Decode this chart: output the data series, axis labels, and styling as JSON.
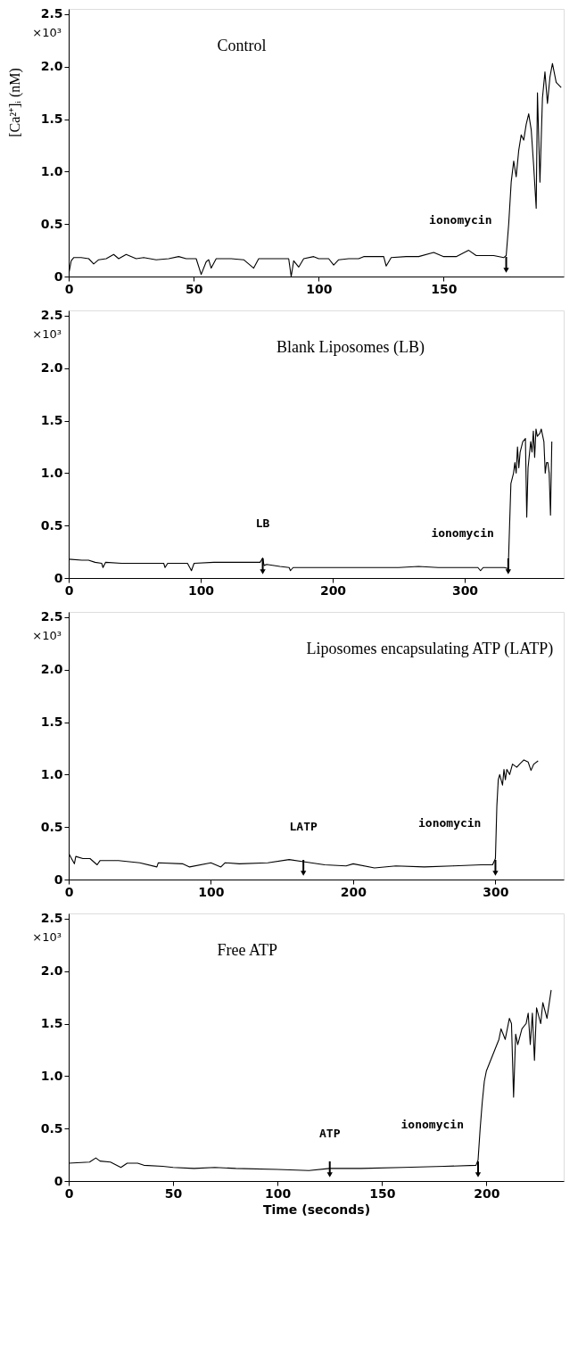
{
  "chart_data": [
    {
      "type": "line",
      "title": "Control",
      "ylabel": "×10³ [Ca²⁺]ᵢ (nM)",
      "annotations": [
        {
          "text": "ionomycin",
          "x": 175,
          "y": 0.2
        }
      ],
      "xlim": [
        0,
        198
      ],
      "xticks": [
        0,
        50,
        100,
        150
      ],
      "ylim": [
        0,
        2.55
      ],
      "yticks": [
        0,
        0.5,
        {
          "value": 1,
          "label": "1.0"
        },
        1.5,
        {
          "value": 2,
          "label": "2.0"
        },
        2.5
      ],
      "grid": false,
      "tick_labels": "xy",
      "series": [
        {
          "color": "#000000",
          "x": [
            0,
            1,
            2,
            5,
            8,
            10,
            12,
            15,
            18,
            20,
            23,
            27,
            30,
            35,
            40,
            44,
            47,
            51,
            53,
            55,
            56,
            57,
            59,
            65,
            70,
            74,
            76,
            80,
            85,
            88,
            89,
            90,
            92,
            94,
            98,
            100,
            104,
            106,
            108,
            112,
            116,
            118,
            122,
            126,
            127,
            129,
            135,
            140,
            146,
            150,
            155,
            160,
            163,
            170,
            174,
            175,
            176,
            177,
            178,
            179,
            180,
            181,
            182,
            183,
            184,
            185,
            186,
            187,
            187.5,
            188.5,
            189.5,
            190.5,
            191.5,
            192.5,
            193.5,
            195,
            197
          ],
          "values": [
            0.02,
            0.15,
            0.18,
            0.18,
            0.17,
            0.12,
            0.16,
            0.17,
            0.21,
            0.17,
            0.21,
            0.17,
            0.18,
            0.16,
            0.17,
            0.19,
            0.17,
            0.17,
            0.02,
            0.14,
            0.16,
            0.08,
            0.17,
            0.17,
            0.16,
            0.08,
            0.17,
            0.17,
            0.17,
            0.17,
            0.0,
            0.15,
            0.09,
            0.17,
            0.19,
            0.17,
            0.17,
            0.11,
            0.16,
            0.17,
            0.17,
            0.19,
            0.19,
            0.19,
            0.1,
            0.18,
            0.19,
            0.19,
            0.23,
            0.19,
            0.19,
            0.25,
            0.2,
            0.2,
            0.18,
            0.2,
            0.5,
            0.9,
            1.1,
            0.95,
            1.2,
            1.35,
            1.3,
            1.45,
            1.55,
            1.4,
            1.05,
            0.65,
            1.75,
            0.9,
            1.7,
            1.95,
            1.65,
            1.9,
            2.03,
            1.85,
            1.8
          ]
        }
      ]
    },
    {
      "type": "line",
      "title": "Blank Liposomes (LB)",
      "ylabel": "×10³",
      "annotations": [
        {
          "text": "LB",
          "x": 147,
          "y": 0.19
        },
        {
          "text": "ionomycin",
          "x": 333,
          "y": 0.09
        }
      ],
      "xlim": [
        0,
        375
      ],
      "xticks": [
        0,
        100,
        200,
        300
      ],
      "ylim": [
        0,
        2.55
      ],
      "yticks": [
        0,
        0.5,
        {
          "value": 1,
          "label": "1.0"
        },
        1.5,
        {
          "value": 2,
          "label": "2.0"
        },
        2.5
      ],
      "grid": false,
      "tick_labels": "xy",
      "series": [
        {
          "color": "#000000",
          "x": [
            0,
            10,
            15,
            20,
            25,
            26,
            28,
            40,
            60,
            72,
            73,
            75,
            90,
            93,
            95,
            110,
            130,
            145,
            147,
            148,
            150,
            160,
            167,
            168,
            170,
            190,
            220,
            250,
            265,
            280,
            300,
            310,
            312,
            314,
            330,
            333,
            334,
            335,
            337,
            338,
            339,
            340,
            341,
            342,
            344,
            346,
            347,
            348,
            350,
            351,
            352,
            353,
            354,
            355,
            357,
            358,
            360,
            361,
            362,
            363,
            364,
            365,
            366
          ],
          "values": [
            0.18,
            0.17,
            0.17,
            0.15,
            0.14,
            0.1,
            0.15,
            0.14,
            0.14,
            0.14,
            0.1,
            0.14,
            0.14,
            0.07,
            0.14,
            0.15,
            0.15,
            0.15,
            0.19,
            0.12,
            0.13,
            0.11,
            0.1,
            0.07,
            0.1,
            0.1,
            0.1,
            0.1,
            0.11,
            0.1,
            0.1,
            0.1,
            0.07,
            0.1,
            0.1,
            0.09,
            0.5,
            0.9,
            1.0,
            1.1,
            1.0,
            1.25,
            1.05,
            1.2,
            1.3,
            1.33,
            0.58,
            1.05,
            1.3,
            1.2,
            1.4,
            1.15,
            1.42,
            1.35,
            1.38,
            1.42,
            1.3,
            1.0,
            1.1,
            1.1,
            1.0,
            0.6,
            1.3
          ]
        }
      ]
    },
    {
      "type": "line",
      "title": "Liposomes encapsulating ATP (LATP)",
      "ylabel": "×10³",
      "annotations": [
        {
          "text": "LATP",
          "x": 165,
          "y": 0.17
        },
        {
          "text": "ionomycin",
          "x": 300,
          "y": 0.2
        }
      ],
      "xlim": [
        0,
        348
      ],
      "xticks": [
        0,
        100,
        200,
        300
      ],
      "ylim": [
        0,
        2.55
      ],
      "yticks": [
        0,
        0.5,
        {
          "value": 1,
          "label": "1.0"
        },
        1.5,
        {
          "value": 2,
          "label": "2.0"
        },
        2.5
      ],
      "grid": false,
      "tick_labels": "xy",
      "series": [
        {
          "color": "#000000",
          "x": [
            0,
            2,
            4,
            5,
            10,
            15,
            20,
            22,
            35,
            50,
            62,
            63,
            80,
            85,
            100,
            107,
            110,
            120,
            140,
            155,
            165,
            180,
            195,
            200,
            215,
            230,
            250,
            270,
            290,
            298,
            300,
            301,
            302,
            303,
            305,
            306,
            307,
            308,
            310,
            312,
            315,
            317,
            320,
            323,
            325,
            327,
            330
          ],
          "values": [
            0.25,
            0.2,
            0.15,
            0.22,
            0.2,
            0.2,
            0.14,
            0.18,
            0.18,
            0.16,
            0.12,
            0.16,
            0.15,
            0.12,
            0.16,
            0.12,
            0.16,
            0.15,
            0.16,
            0.19,
            0.17,
            0.14,
            0.13,
            0.15,
            0.11,
            0.13,
            0.12,
            0.13,
            0.14,
            0.14,
            0.2,
            0.7,
            0.95,
            1.0,
            0.9,
            1.05,
            0.95,
            1.05,
            1.0,
            1.1,
            1.07,
            1.1,
            1.14,
            1.12,
            1.04,
            1.1,
            1.13
          ]
        }
      ]
    },
    {
      "type": "line",
      "title": "Free ATP",
      "xlabel": "Time (seconds)",
      "ylabel": "×10³",
      "annotations": [
        {
          "text": "ATP",
          "x": 125,
          "y": 0.12
        },
        {
          "text": "ionomycin",
          "x": 196,
          "y": 0.2
        }
      ],
      "xlim": [
        0,
        237
      ],
      "xticks": [
        0,
        50,
        100,
        150,
        200
      ],
      "ylim": [
        0,
        2.55
      ],
      "yticks": [
        0,
        0.5,
        {
          "value": 1,
          "label": "1.0"
        },
        1.5,
        {
          "value": 2,
          "label": "2.0"
        },
        2.5
      ],
      "grid": false,
      "tick_labels": "xy",
      "series": [
        {
          "color": "#000000",
          "x": [
            0,
            10,
            13,
            15,
            20,
            25,
            28,
            33,
            36,
            45,
            50,
            60,
            70,
            80,
            100,
            115,
            125,
            140,
            160,
            180,
            195,
            196,
            197,
            198,
            199,
            200,
            202,
            204,
            206,
            207,
            208,
            209,
            210,
            211,
            212,
            213,
            214,
            215,
            217,
            219,
            220,
            221,
            222,
            223,
            224,
            226,
            227,
            229,
            231
          ],
          "values": [
            0.17,
            0.18,
            0.22,
            0.19,
            0.18,
            0.13,
            0.17,
            0.17,
            0.15,
            0.14,
            0.13,
            0.12,
            0.13,
            0.12,
            0.11,
            0.1,
            0.12,
            0.12,
            0.13,
            0.14,
            0.15,
            0.2,
            0.5,
            0.75,
            0.95,
            1.05,
            1.15,
            1.25,
            1.35,
            1.45,
            1.4,
            1.35,
            1.45,
            1.55,
            1.5,
            0.8,
            1.4,
            1.3,
            1.45,
            1.5,
            1.6,
            1.3,
            1.6,
            1.15,
            1.65,
            1.5,
            1.7,
            1.55,
            1.82
          ]
        }
      ]
    }
  ]
}
